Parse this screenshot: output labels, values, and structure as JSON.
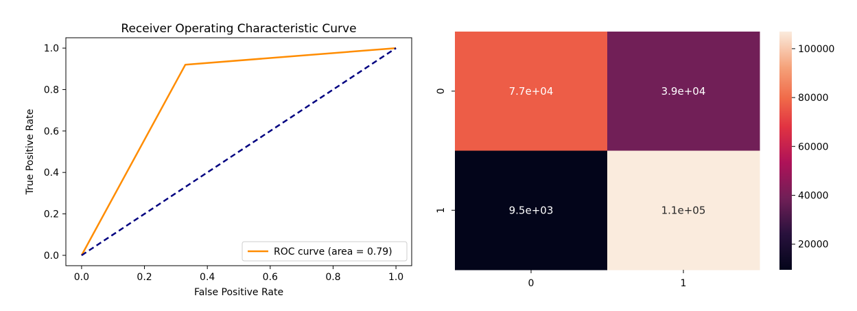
{
  "chart_data": [
    {
      "type": "line",
      "title": "Receiver Operating Characteristic Curve",
      "xlabel": "False Positive Rate",
      "ylabel": "True Positive Rate",
      "xlim": [
        -0.05,
        1.05
      ],
      "ylim": [
        -0.05,
        1.05
      ],
      "xticks": [
        "0.0",
        "0.2",
        "0.4",
        "0.6",
        "0.8",
        "1.0"
      ],
      "yticks": [
        "0.0",
        "0.2",
        "0.4",
        "0.6",
        "0.8",
        "1.0"
      ],
      "grid": false,
      "legend_position": "lower-right",
      "series": [
        {
          "name": "ROC curve (area = 0.79)",
          "color": "#ff8c00",
          "style": "solid",
          "x": [
            0.0,
            0.33,
            1.0
          ],
          "y": [
            0.0,
            0.92,
            1.0
          ]
        },
        {
          "color": "#000080",
          "style": "dashed",
          "x": [
            0.0,
            1.0
          ],
          "y": [
            0.0,
            1.0
          ]
        }
      ]
    },
    {
      "type": "heatmap",
      "row_labels": [
        "0",
        "1"
      ],
      "col_labels": [
        "0",
        "1"
      ],
      "values": [
        [
          77000,
          39000
        ],
        [
          9500,
          110000
        ]
      ],
      "annotations": [
        [
          "7.7e+04",
          "3.9e+04"
        ],
        [
          "9.5e+03",
          "1.1e+05"
        ]
      ],
      "colorscale": "rocket",
      "colorbar_range": [
        9500,
        107000
      ],
      "colorbar_ticks": [
        "20000",
        "40000",
        "60000",
        "80000",
        "100000"
      ]
    }
  ]
}
